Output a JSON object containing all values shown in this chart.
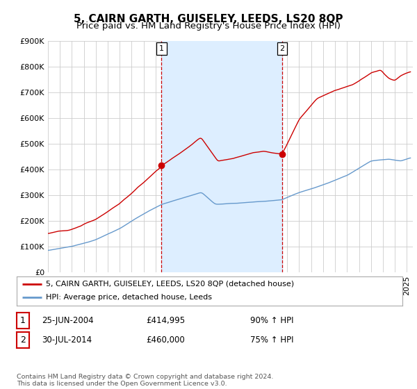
{
  "title": "5, CAIRN GARTH, GUISELEY, LEEDS, LS20 8QP",
  "subtitle": "Price paid vs. HM Land Registry's House Price Index (HPI)",
  "ylim": [
    0,
    900000
  ],
  "yticks": [
    0,
    100000,
    200000,
    300000,
    400000,
    500000,
    600000,
    700000,
    800000,
    900000
  ],
  "ytick_labels": [
    "£0",
    "£100K",
    "£200K",
    "£300K",
    "£400K",
    "£500K",
    "£600K",
    "£700K",
    "£800K",
    "£900K"
  ],
  "xlim_start": 1995.0,
  "xlim_end": 2025.5,
  "sale1_year": 2004.48,
  "sale1_price": 414995,
  "sale1_label": "1",
  "sale1_date": "25-JUN-2004",
  "sale1_price_str": "£414,995",
  "sale1_hpi": "90% ↑ HPI",
  "sale2_year": 2014.58,
  "sale2_price": 460000,
  "sale2_label": "2",
  "sale2_date": "30-JUL-2014",
  "sale2_price_str": "£460,000",
  "sale2_hpi": "75% ↑ HPI",
  "red_line_color": "#cc0000",
  "blue_line_color": "#6699cc",
  "shade_color": "#ddeeff",
  "background_color": "#ffffff",
  "grid_color": "#cccccc",
  "legend_line1": "5, CAIRN GARTH, GUISELEY, LEEDS, LS20 8QP (detached house)",
  "legend_line2": "HPI: Average price, detached house, Leeds",
  "footer": "Contains HM Land Registry data © Crown copyright and database right 2024.\nThis data is licensed under the Open Government Licence v3.0.",
  "title_fontsize": 11,
  "subtitle_fontsize": 9.5,
  "tick_fontsize": 8
}
